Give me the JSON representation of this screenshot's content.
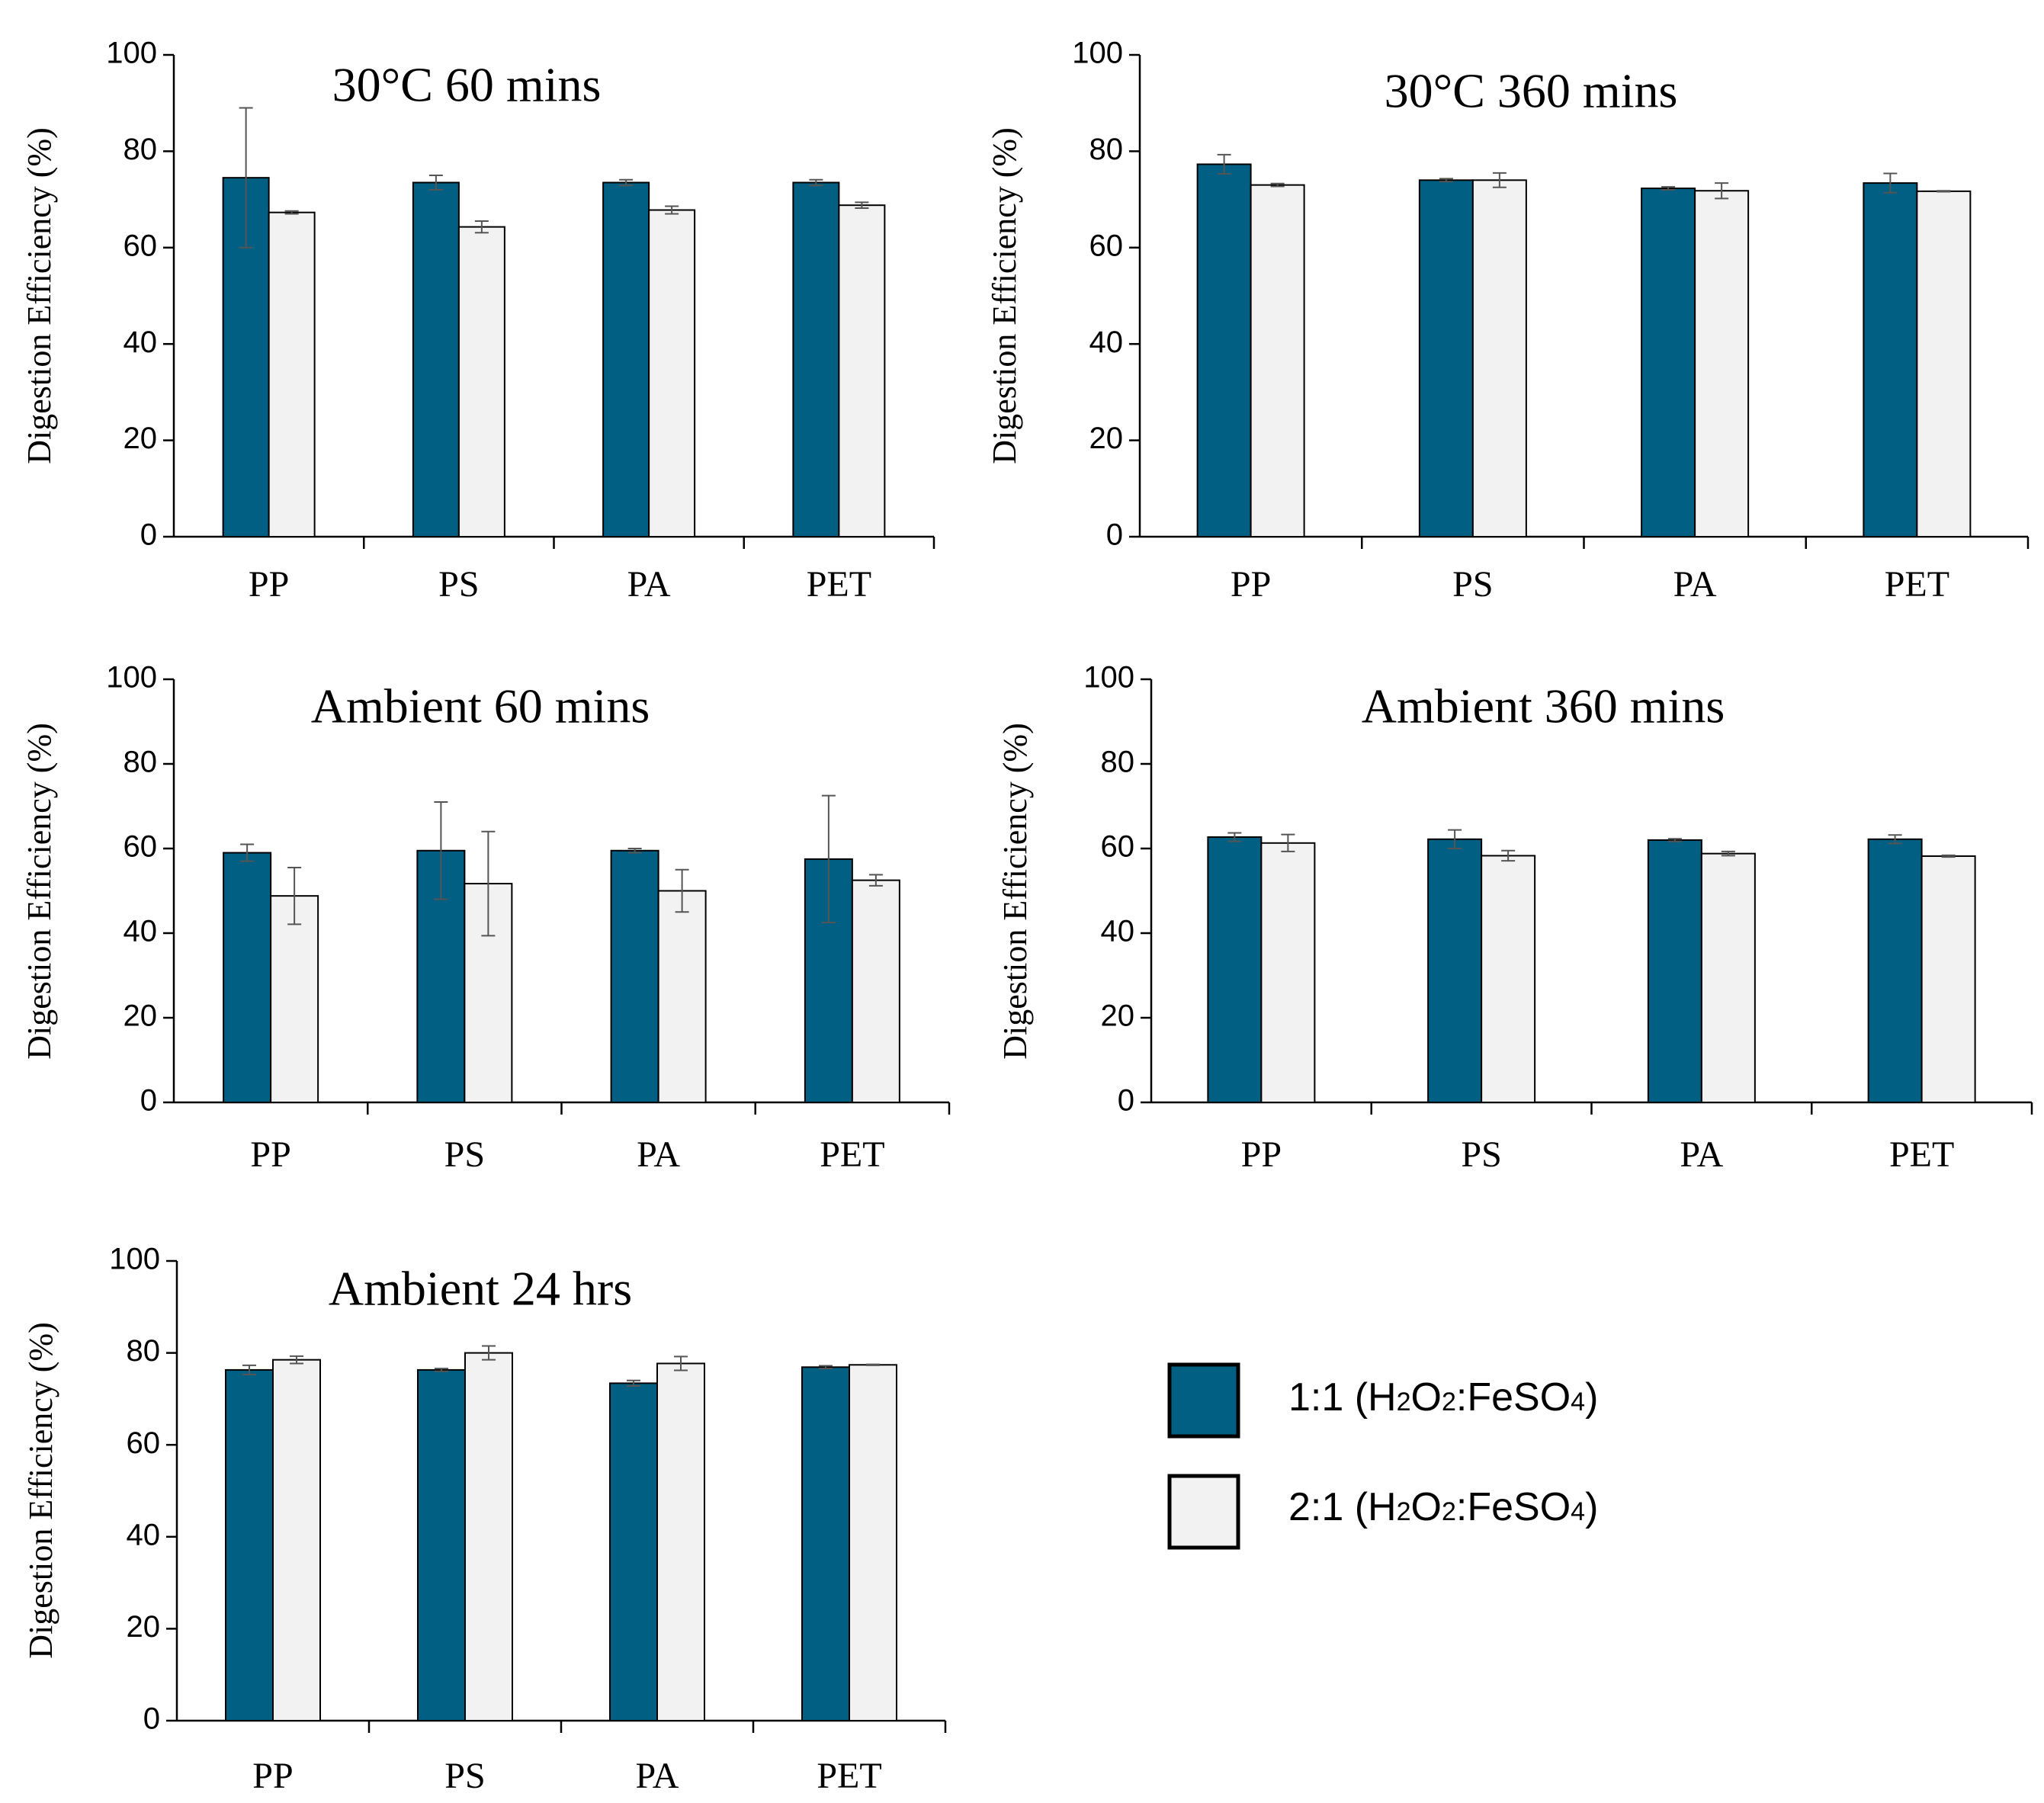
{
  "colors": {
    "series1": "#005F83",
    "series2": "#F2F2F2",
    "axis": "#000000",
    "errorbar": "#555555"
  },
  "legend": {
    "items": [
      {
        "pre": "1:1 (H",
        "s1": "2",
        "mid1": "O",
        "s2": "2",
        "mid2": ":FeSO",
        "s3": "4",
        "post": ")"
      },
      {
        "pre": "2:1 (H",
        "s1": "2",
        "mid1": "O",
        "s2": "2",
        "mid2": ":FeSO",
        "s3": "4",
        "post": ")"
      }
    ]
  },
  "chart_data": [
    {
      "type": "bar",
      "title": "30°C 60 mins",
      "ylabel": "Digestion Efficiency (%)",
      "ylim": [
        0,
        100
      ],
      "yticks": [
        "0",
        "20",
        "40",
        "60",
        "80",
        "100"
      ],
      "categories": [
        "PP",
        "PS",
        "PA",
        "PET"
      ],
      "series": [
        {
          "name": "1:1 (H2O2:FeSO4)",
          "values": [
            74.5,
            73.5,
            73.5,
            73.5
          ],
          "errors": [
            14.5,
            1.5,
            0.6,
            0.6
          ]
        },
        {
          "name": "2:1 (H2O2:FeSO4)",
          "values": [
            67.3,
            64.3,
            67.8,
            68.8
          ],
          "errors": [
            0.3,
            1.2,
            0.8,
            0.6
          ]
        }
      ]
    },
    {
      "type": "bar",
      "title": "30°C 360 mins",
      "ylabel": "Digestion Efficiency (%)",
      "ylim": [
        0,
        100
      ],
      "yticks": [
        "0",
        "20",
        "40",
        "60",
        "80",
        "100"
      ],
      "categories": [
        "PP",
        "PS",
        "PA",
        "PET"
      ],
      "series": [
        {
          "name": "1:1 (H2O2:FeSO4)",
          "values": [
            77.3,
            74.0,
            72.3,
            73.4
          ],
          "errors": [
            2.0,
            0.3,
            0.3,
            2.0
          ]
        },
        {
          "name": "2:1 (H2O2:FeSO4)",
          "values": [
            73.0,
            74.0,
            71.8,
            71.7
          ],
          "errors": [
            0.3,
            1.5,
            1.6,
            0.1
          ]
        }
      ]
    },
    {
      "type": "bar",
      "title": "Ambient 60 mins",
      "ylabel": "Digestion Efficiency (%)",
      "ylim": [
        0,
        100
      ],
      "yticks": [
        "0",
        "20",
        "40",
        "60",
        "80",
        "100"
      ],
      "categories": [
        "PP",
        "PS",
        "PA",
        "PET"
      ],
      "series": [
        {
          "name": "1:1 (H2O2:FeSO4)",
          "values": [
            59.0,
            59.5,
            59.5,
            57.5
          ],
          "errors": [
            2.0,
            11.5,
            0.5,
            15.0
          ]
        },
        {
          "name": "2:1 (H2O2:FeSO4)",
          "values": [
            48.8,
            51.7,
            50.0,
            52.5
          ],
          "errors": [
            6.7,
            12.3,
            5.0,
            1.3
          ]
        }
      ]
    },
    {
      "type": "bar",
      "title": "Ambient  360 mins",
      "ylabel": "Digestion Efficiency (%)",
      "ylim": [
        0,
        100
      ],
      "yticks": [
        "0",
        "20",
        "40",
        "60",
        "80",
        "100"
      ],
      "categories": [
        "PP",
        "PS",
        "PA",
        "PET"
      ],
      "series": [
        {
          "name": "1:1 (H2O2:FeSO4)",
          "values": [
            62.7,
            62.2,
            62.0,
            62.2
          ],
          "errors": [
            1.0,
            2.2,
            0.3,
            1.0
          ]
        },
        {
          "name": "2:1 (H2O2:FeSO4)",
          "values": [
            61.3,
            58.3,
            58.8,
            58.2
          ],
          "errors": [
            2.0,
            1.2,
            0.5,
            0.2
          ]
        }
      ]
    },
    {
      "type": "bar",
      "title": "Ambient  24 hrs",
      "ylabel": "Digestion Efficiency (%)",
      "ylim": [
        0,
        100
      ],
      "yticks": [
        "0",
        "20",
        "40",
        "60",
        "80",
        "100"
      ],
      "categories": [
        "PP",
        "PS",
        "PA",
        "PET"
      ],
      "series": [
        {
          "name": "1:1 (H2O2:FeSO4)",
          "values": [
            76.3,
            76.3,
            73.4,
            76.9
          ],
          "errors": [
            1.0,
            0.3,
            0.6,
            0.3
          ]
        },
        {
          "name": "2:1 (H2O2:FeSO4)",
          "values": [
            78.5,
            80.0,
            77.7,
            77.4
          ],
          "errors": [
            0.8,
            1.5,
            1.5,
            0.1
          ]
        }
      ]
    }
  ]
}
